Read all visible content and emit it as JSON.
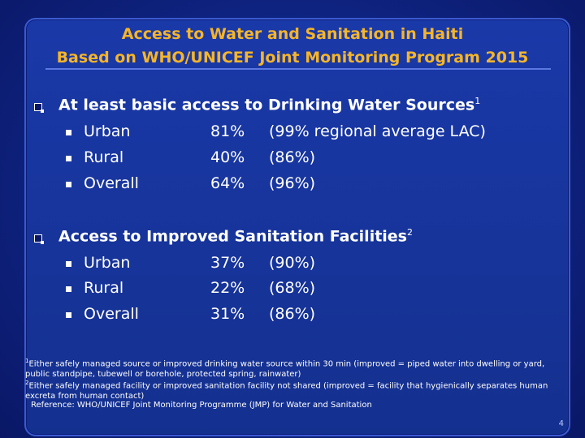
{
  "slide": {
    "title_line1": "Access to Water and Sanitation in Haiti",
    "title_line2": "Based on WHO/UNICEF Joint Monitoring Program 2015",
    "page_number": "4"
  },
  "water": {
    "heading": "At least basic access to Drinking Water Sources",
    "footnote_marker": "1",
    "rows": [
      {
        "label": "Urban",
        "percent": "81%",
        "regional": "(99% regional average LAC)"
      },
      {
        "label": "Rural",
        "percent": "40%",
        "regional": "(86%)"
      },
      {
        "label": "Overall",
        "percent": "64%",
        "regional": "(96%)"
      }
    ]
  },
  "sanitation": {
    "heading": "Access to Improved Sanitation Facilities",
    "footnote_marker": "2",
    "rows": [
      {
        "label": "Urban",
        "percent": "37%",
        "regional": "(90%)"
      },
      {
        "label": "Rural",
        "percent": "22%",
        "regional": "(68%)"
      },
      {
        "label": "Overall",
        "percent": "31%",
        "regional": "(86%)"
      }
    ]
  },
  "footnotes": {
    "note1_marker": "1",
    "note1_text": "Either safely managed source or improved drinking water source within 30 min (improved = piped water into dwelling or yard, public standpipe, tubewell or borehole, protected spring, rainwater)",
    "note2_marker": "2",
    "note2_text": "Either safely managed facility or improved sanitation facility not shared (improved = facility that hygienically separates human excreta from human contact)",
    "reference": "Reference: WHO/UNICEF Joint Monitoring Programme (JMP) for Water and Sanitation"
  },
  "colors": {
    "background": "#0a1a6e",
    "title": "#f5b52a",
    "text": "#ffffff"
  }
}
